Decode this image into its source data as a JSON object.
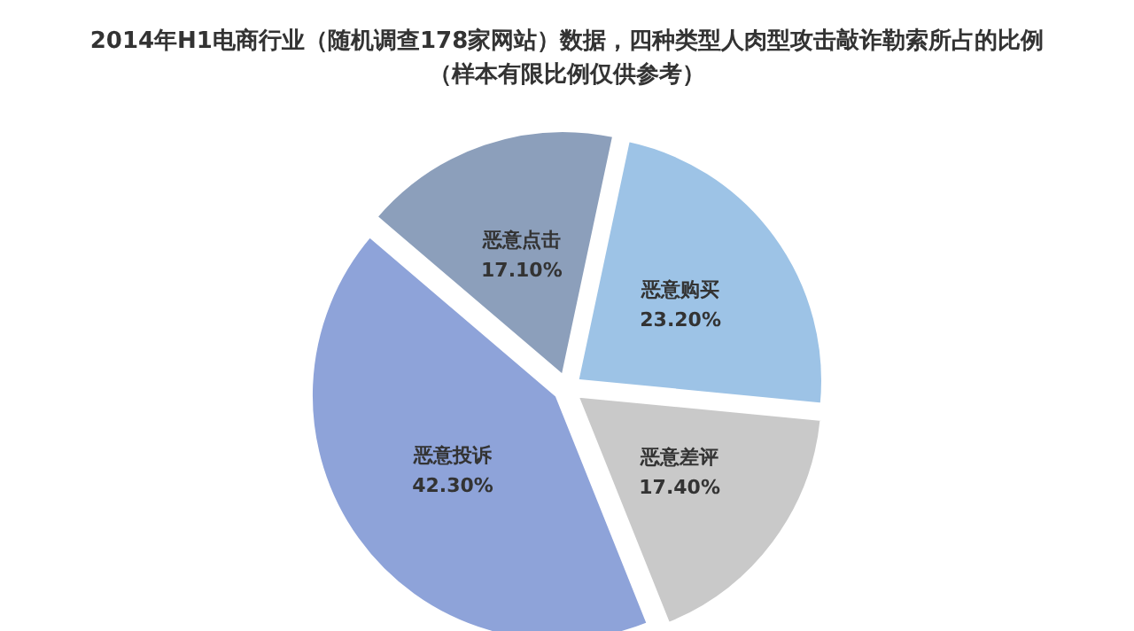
{
  "chart_data": {
    "type": "pie",
    "title": "2014年H1电商行业（随机调查178家网站）数据，四种类型人肉型攻击敲诈勒索所占的比例",
    "subtitle": "（样本有限比例仅供参考）",
    "categories": [
      "恶意购买",
      "恶意差评",
      "恶意投诉",
      "恶意点击"
    ],
    "values": [
      23.2,
      17.4,
      42.3,
      17.1
    ],
    "value_labels": [
      "23.20%",
      "17.40%",
      "42.30%",
      "17.10%"
    ],
    "colors": [
      "#9dc3e6",
      "#c9c9c9",
      "#8ea3d9",
      "#8c9fbb"
    ],
    "legend": false
  }
}
